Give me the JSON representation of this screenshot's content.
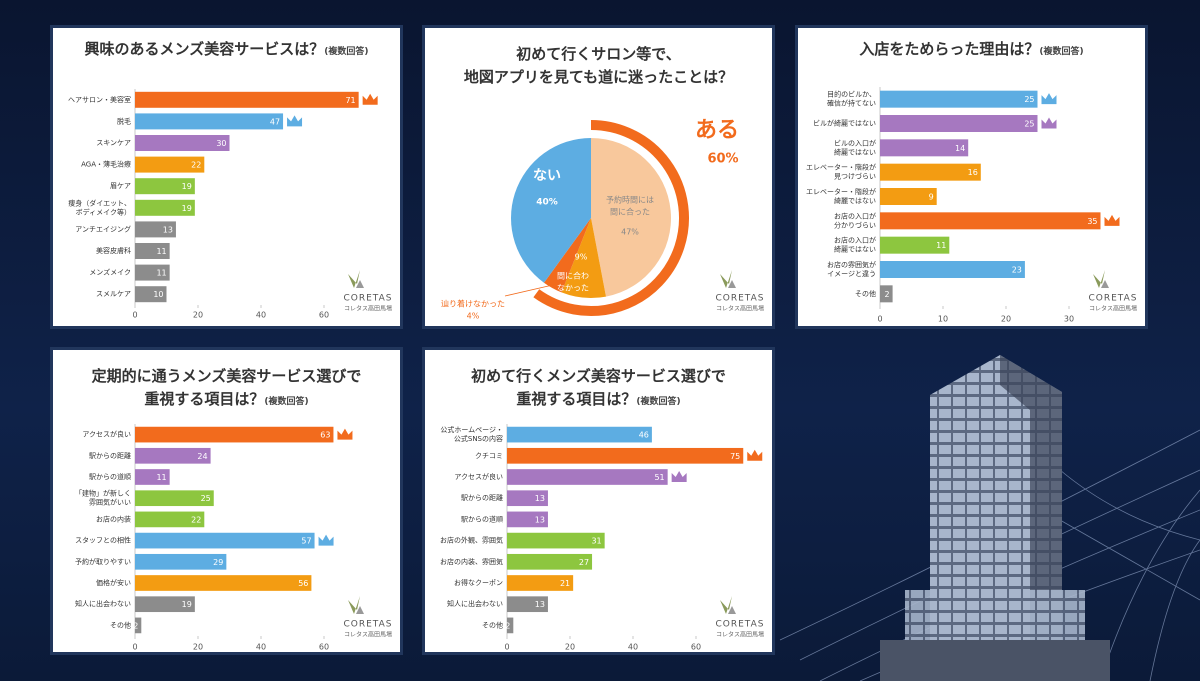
{
  "brand": {
    "name": "CORETAS",
    "sub": "コレタス高田馬場"
  },
  "chart_data": [
    {
      "type": "bar",
      "title": [
        "興味のあるメンズ美容サービスは？"
      ],
      "subtitle": "(複数回答)",
      "categories": [
        [
          "ヘアサロン・美容室"
        ],
        [
          "脱毛"
        ],
        [
          "スキンケア"
        ],
        [
          "AGA・薄毛治療"
        ],
        [
          "眉ケア"
        ],
        [
          "痩身（ダイエット、",
          "ボディメイク等）"
        ],
        [
          "アンチエイジング"
        ],
        [
          "美容皮膚科"
        ],
        [
          "メンズメイク"
        ],
        [
          "スメルケア"
        ]
      ],
      "values": [
        71,
        47,
        30,
        22,
        19,
        19,
        13,
        11,
        11,
        10
      ],
      "colors": [
        "#f26b1d",
        "#5dade2",
        "#a678c0",
        "#f39c12",
        "#8dc63f",
        "#8dc63f",
        "#8c8c8c",
        "#8c8c8c",
        "#8c8c8c",
        "#8c8c8c"
      ],
      "xlim": [
        0,
        80
      ],
      "xticks": [
        0,
        20,
        40,
        60
      ]
    },
    {
      "type": "pie",
      "title": [
        "初めて行くサロン等で、",
        "地図アプリを見ても道に迷ったことは？"
      ],
      "categories": [
        [
          "予約時間には",
          "間に合った"
        ],
        [
          "間に合わ",
          "なかった"
        ],
        [
          "辿り着けなかった"
        ],
        [
          "ない"
        ]
      ],
      "values": [
        47,
        9,
        4,
        40
      ],
      "value_labels": [
        "47%",
        "9%",
        "4%",
        "40%"
      ],
      "colors": [
        "#f8c89c",
        "#f39c12",
        "#f26b1d",
        "#5dade2"
      ],
      "annotations": [
        {
          "text": "ある",
          "label": "60%"
        }
      ]
    },
    {
      "type": "bar",
      "title": [
        "入店をためらった理由は？"
      ],
      "subtitle": "(複数回答)",
      "categories": [
        [
          "目的のビルか、",
          "確信が持てない"
        ],
        [
          "ビルが綺麗ではない"
        ],
        [
          "ビルの入口が",
          "綺麗ではない"
        ],
        [
          "エレベーター・階段が",
          "見つけづらい"
        ],
        [
          "エレベーター・階段が",
          "綺麗ではない"
        ],
        [
          "お店の入口が",
          "分かりづらい"
        ],
        [
          "お店の入口が",
          "綺麗ではない"
        ],
        [
          "お店の雰囲気が",
          "イメージと違う"
        ],
        [
          "その他"
        ]
      ],
      "values": [
        25,
        25,
        14,
        16,
        9,
        35,
        11,
        23,
        2
      ],
      "colors": [
        "#5dade2",
        "#a678c0",
        "#a678c0",
        "#f39c12",
        "#f39c12",
        "#f26b1d",
        "#8dc63f",
        "#5dade2",
        "#8c8c8c"
      ],
      "xlim": [
        0,
        40
      ],
      "xticks": [
        0,
        10,
        20,
        30
      ]
    },
    {
      "type": "bar",
      "title": [
        "定期的に通うメンズ美容サービス選びで",
        "重視する項目は？"
      ],
      "subtitle": "(複数回答)",
      "categories": [
        [
          "アクセスが良い"
        ],
        [
          "駅からの距離"
        ],
        [
          "駅からの道順"
        ],
        [
          "「建物」が新しく",
          "雰囲気がいい"
        ],
        [
          "お店の内装"
        ],
        [
          "スタッフとの相性"
        ],
        [
          "予約が取りやすい"
        ],
        [
          "価格が安い"
        ],
        [
          "知人に出会わない"
        ],
        [
          "その他"
        ]
      ],
      "values": [
        63,
        24,
        11,
        25,
        22,
        57,
        29,
        56,
        19,
        2
      ],
      "colors": [
        "#f26b1d",
        "#a678c0",
        "#a678c0",
        "#8dc63f",
        "#8dc63f",
        "#5dade2",
        "#5dade2",
        "#f39c12",
        "#8c8c8c",
        "#8c8c8c"
      ],
      "xlim": [
        0,
        80
      ],
      "xticks": [
        0,
        20,
        40,
        60
      ]
    },
    {
      "type": "bar",
      "title": [
        "初めて行くメンズ美容サービス選びで",
        "重視する項目は？"
      ],
      "subtitle": "(複数回答)",
      "categories": [
        [
          "公式ホームページ・",
          "公式SNSの内容"
        ],
        [
          "クチコミ"
        ],
        [
          "アクセスが良い"
        ],
        [
          "駅からの距離"
        ],
        [
          "駅からの道順"
        ],
        [
          "お店の外観、雰囲気"
        ],
        [
          "お店の内装、雰囲気"
        ],
        [
          "お得なクーポン"
        ],
        [
          "知人に出会わない"
        ],
        [
          "その他"
        ]
      ],
      "values": [
        46,
        75,
        51,
        13,
        13,
        31,
        27,
        21,
        13,
        2
      ],
      "colors": [
        "#5dade2",
        "#f26b1d",
        "#a678c0",
        "#a678c0",
        "#a678c0",
        "#8dc63f",
        "#8dc63f",
        "#f39c12",
        "#8c8c8c",
        "#8c8c8c"
      ],
      "xlim": [
        0,
        80
      ],
      "xticks": [
        0,
        20,
        40,
        60
      ]
    }
  ]
}
